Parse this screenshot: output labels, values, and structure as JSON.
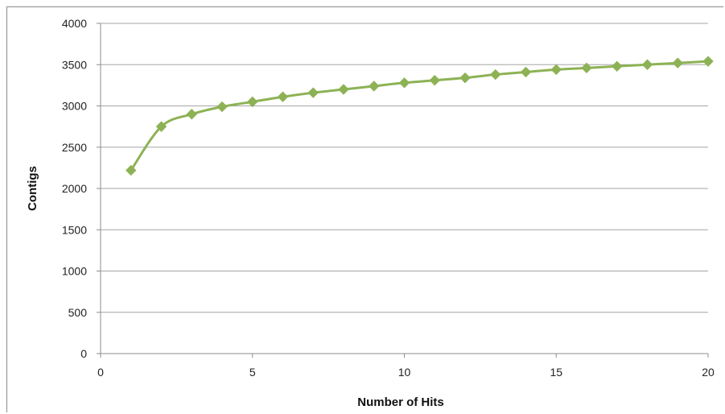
{
  "chart_data": {
    "type": "line",
    "xlabel": "Number of Hits",
    "ylabel": "Contigs",
    "xlim": [
      0,
      20
    ],
    "ylim": [
      0,
      4000
    ],
    "x_ticks": [
      "0",
      "5",
      "10",
      "15",
      "20"
    ],
    "y_ticks": [
      "0",
      "500",
      "1000",
      "1500",
      "2000",
      "2500",
      "3000",
      "3500",
      "4000"
    ],
    "grid": "horizontal",
    "legend": "none",
    "series": [
      {
        "color": "#8db255",
        "marker": "diamond",
        "x": [
          1,
          2,
          3,
          4,
          5,
          6,
          7,
          8,
          9,
          10,
          11,
          12,
          13,
          14,
          15,
          16,
          17,
          18,
          19,
          20
        ],
        "values": [
          2220,
          2750,
          2900,
          2990,
          3050,
          3110,
          3160,
          3200,
          3240,
          3280,
          3310,
          3340,
          3380,
          3410,
          3440,
          3460,
          3480,
          3500,
          3520,
          3540
        ]
      }
    ]
  }
}
